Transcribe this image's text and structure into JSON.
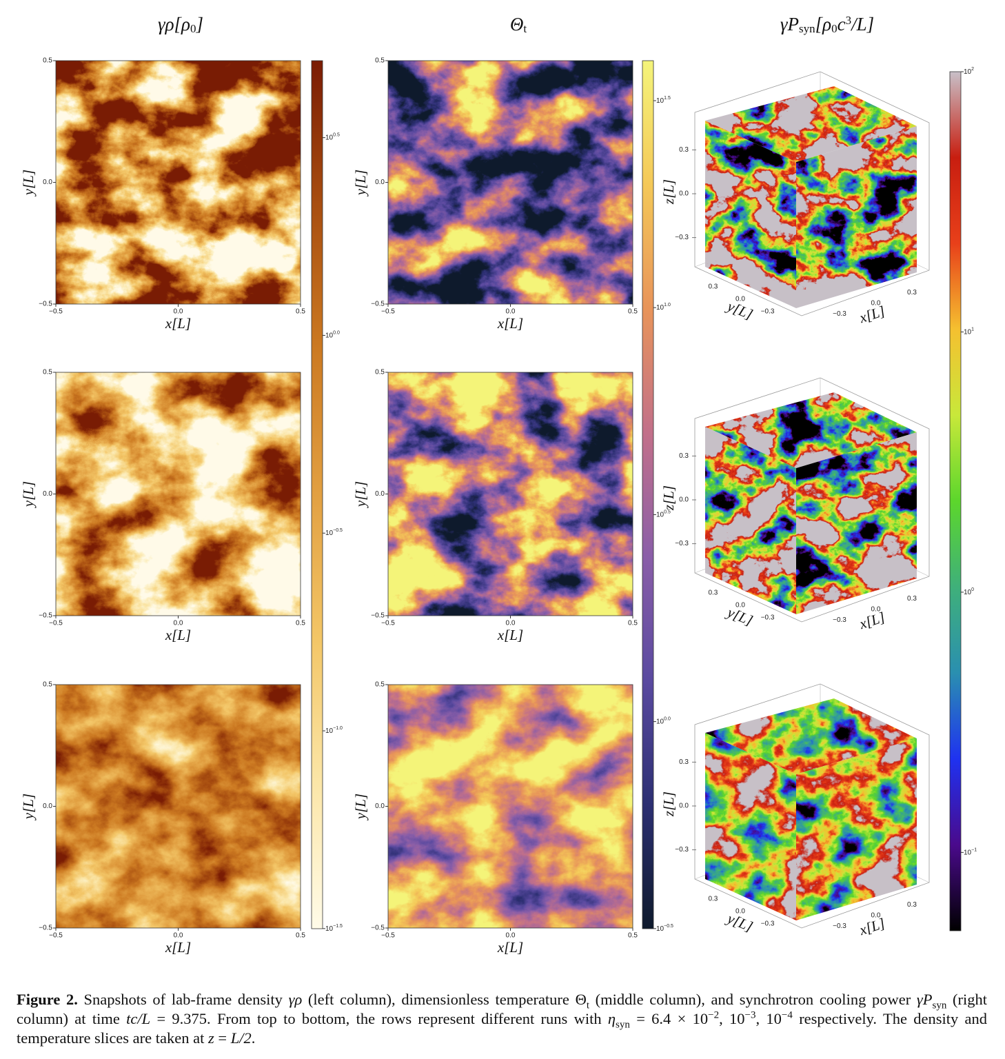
{
  "columns": [
    {
      "title": [
        {
          "text": "γρ[ρ"
        },
        {
          "text": "0",
          "shift": "sub"
        },
        {
          "text": "]"
        }
      ]
    },
    {
      "title": [
        {
          "text": "Θ"
        },
        {
          "text": "t",
          "shift": "sub"
        }
      ]
    },
    {
      "title": [
        {
          "text": "γP"
        },
        {
          "text": "syn",
          "shift": "sub"
        },
        {
          "text": "[ρ"
        },
        {
          "text": "0",
          "shift": "sub"
        },
        {
          "text": "c"
        },
        {
          "text": "3",
          "shift": "sup"
        },
        {
          "text": "/L]"
        }
      ]
    }
  ],
  "slice_axes": {
    "xlabel": "x[L]",
    "ylabel": "y[L]",
    "lim": [
      -0.5,
      0.5
    ],
    "xticks": [
      {
        "value": -0.5,
        "label": "−0.5"
      },
      {
        "value": 0,
        "label": "0.0"
      },
      0.5
    ],
    "yticks": [
      {
        "value": -0.5,
        "label": "−0.5"
      },
      {
        "value": 0,
        "label": "0.0"
      },
      0.5
    ]
  },
  "cube_axes": {
    "xlabel": "x[L]",
    "ylabel": "y[L]",
    "zlabel": "z[L]",
    "lim": [
      -0.5,
      0.5
    ],
    "ticks": [
      {
        "value": -0.3,
        "label": "−0.3"
      },
      {
        "value": 0,
        "label": "0.0"
      },
      0.3
    ]
  },
  "colorbars": [
    {
      "scale": "log",
      "lim": [
        0.0316,
        4.95
      ],
      "ticks": [
        {
          "value": 3.162,
          "base": "10",
          "exponent": "0.5"
        },
        {
          "value": 1,
          "base": "10",
          "exponent": "0.0"
        },
        {
          "value": 0.3162,
          "base": "10",
          "exponent": "−0.5"
        },
        {
          "value": 0.1,
          "base": "10",
          "exponent": "−1.0"
        },
        {
          "value": 0.03162,
          "base": "10",
          "exponent": "−1.5"
        }
      ]
    },
    {
      "scale": "log",
      "lim": [
        0.316,
        39.5
      ],
      "ticks": [
        {
          "value": 31.62,
          "base": "10",
          "exponent": "1.5"
        },
        {
          "value": 10,
          "base": "10",
          "exponent": "1.0"
        },
        {
          "value": 3.162,
          "base": "10",
          "exponent": "0.5"
        },
        {
          "value": 1,
          "base": "10",
          "exponent": "0.0"
        },
        {
          "value": 0.3162,
          "base": "10",
          "exponent": "−0.5"
        }
      ]
    },
    {
      "scale": "log",
      "lim": [
        0.05,
        100
      ],
      "ticks": [
        {
          "value": 100,
          "base": "10",
          "exponent": "2"
        },
        {
          "value": 10,
          "base": "10",
          "exponent": "1"
        },
        {
          "value": 1,
          "base": "10",
          "exponent": "0"
        },
        {
          "value": 0.1,
          "base": "10",
          "exponent": "−1"
        }
      ]
    }
  ],
  "caption": [
    {
      "text": "Figure 2.",
      "style": "bold"
    },
    {
      "text": " Snapshots of lab-frame density "
    },
    {
      "text": "γρ",
      "style": "italic"
    },
    {
      "text": " (left column), dimensionless temperature Θ"
    },
    {
      "text": "t",
      "style": "sub"
    },
    {
      "text": " (middle column), and synchrotron cooling power "
    },
    {
      "text": "γP",
      "style": "italic"
    },
    {
      "text": "syn",
      "style": "sub"
    },
    {
      "text": " (right column) at time "
    },
    {
      "text": "tc/L",
      "style": "italic"
    },
    {
      "text": " = 9.375. From top to bottom, the rows represent different runs with "
    },
    {
      "text": "η",
      "style": "italic"
    },
    {
      "text": "syn",
      "style": "sub"
    },
    {
      "text": " = 6.4 × 10"
    },
    {
      "text": "−2",
      "style": "sup"
    },
    {
      "text": ", 10"
    },
    {
      "text": "−3",
      "style": "sup"
    },
    {
      "text": ", 10"
    },
    {
      "text": "−4",
      "style": "sup"
    },
    {
      "text": " respectively. The density and temperature slices are taken at "
    },
    {
      "text": "z",
      "style": "italic"
    },
    {
      "text": " = "
    },
    {
      "text": "L/2",
      "style": "italic"
    },
    {
      "text": "."
    }
  ]
}
